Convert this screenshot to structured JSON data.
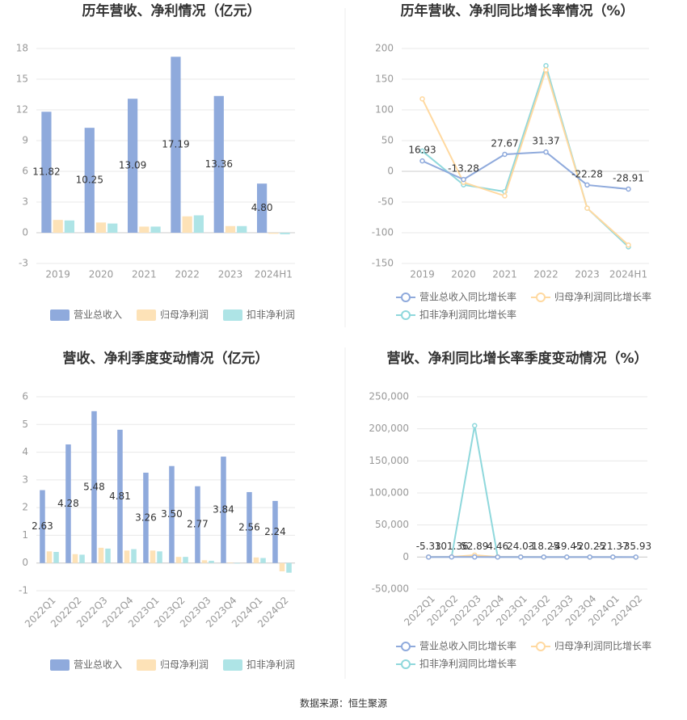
{
  "chart_data": [
    {
      "type": "bar",
      "title": "历年营收、净利情况（亿元）",
      "categories": [
        "2019",
        "2020",
        "2021",
        "2022",
        "2023",
        "2024H1"
      ],
      "series": [
        {
          "name": "营业总收入",
          "color": "#8faadc",
          "values": [
            11.82,
            10.25,
            13.09,
            17.19,
            13.36,
            4.8
          ],
          "value_labels": [
            "11.82",
            "10.25",
            "13.09",
            "17.19",
            "13.36",
            "4.80"
          ]
        },
        {
          "name": "归母净利润",
          "color": "#fde2b7",
          "values": [
            1.25,
            1.0,
            0.6,
            1.6,
            0.65,
            -0.1
          ]
        },
        {
          "name": "扣非净利润",
          "color": "#aee4e6",
          "values": [
            1.2,
            0.9,
            0.6,
            1.7,
            0.65,
            -0.15
          ]
        }
      ],
      "ylim": [
        -3,
        18
      ],
      "yticks": [
        -3,
        0,
        3,
        6,
        9,
        12,
        15,
        18
      ],
      "grid": true
    },
    {
      "type": "line",
      "title": "历年营收、净利同比增长率情况（%）",
      "categories": [
        "2019",
        "2020",
        "2021",
        "2022",
        "2023",
        "2024H1"
      ],
      "series": [
        {
          "name": "营业总收入同比增长率",
          "color": "#8faadc",
          "values": [
            16.93,
            -13.28,
            27.67,
            31.37,
            -22.28,
            -28.91
          ]
        },
        {
          "name": "归母净利润同比增长率",
          "color": "#ffd9a0",
          "values": [
            118,
            -18,
            -40,
            165,
            -60,
            -120
          ]
        },
        {
          "name": "扣非净利润同比增长率",
          "color": "#8fd8dc",
          "values": [
            33,
            -22,
            -33,
            172,
            -60,
            -123
          ]
        }
      ],
      "labeled_series": 0,
      "ylim": [
        -150,
        200
      ],
      "yticks": [
        -150,
        -100,
        -50,
        0,
        50,
        100,
        150,
        200
      ],
      "grid": true
    },
    {
      "type": "bar",
      "title": "营收、净利季度变动情况（亿元）",
      "categories": [
        "2022Q1",
        "2022Q2",
        "2022Q3",
        "2022Q4",
        "2023Q1",
        "2023Q2",
        "2023Q3",
        "2023Q4",
        "2024Q1",
        "2024Q2"
      ],
      "series": [
        {
          "name": "营业总收入",
          "color": "#8faadc",
          "values": [
            2.63,
            4.28,
            5.48,
            4.81,
            3.26,
            3.5,
            2.77,
            3.84,
            2.56,
            2.24
          ],
          "value_labels": [
            "2.63",
            "4.28",
            "5.48",
            "4.81",
            "3.26",
            "3.50",
            "2.77",
            "3.84",
            "2.56",
            "2.24"
          ]
        },
        {
          "name": "归母净利润",
          "color": "#fde2b7",
          "values": [
            0.42,
            0.32,
            0.55,
            0.45,
            0.45,
            0.22,
            0.1,
            0.02,
            0.2,
            -0.3
          ]
        },
        {
          "name": "扣非净利润",
          "color": "#aee4e6",
          "values": [
            0.4,
            0.3,
            0.52,
            0.5,
            0.42,
            0.22,
            0.08,
            -0.02,
            0.18,
            -0.35
          ]
        }
      ],
      "ylim": [
        -1,
        6
      ],
      "yticks": [
        -1,
        0,
        1,
        2,
        3,
        4,
        5,
        6
      ],
      "grid": true,
      "rotate_labels": true
    },
    {
      "type": "line",
      "title": "营收、净利同比增长率季度变动情况（%）",
      "categories": [
        "2022Q1",
        "2022Q2",
        "2022Q3",
        "2022Q4",
        "2023Q1",
        "2023Q2",
        "2023Q3",
        "2023Q4",
        "2024Q1",
        "2024Q2"
      ],
      "series": [
        {
          "name": "营业总收入同比增长率",
          "color": "#8faadc",
          "values": [
            -5.33,
            101.36,
            52.89,
            4.46,
            24.03,
            -18.25,
            -49.45,
            -20.25,
            -21.37,
            -35.93
          ]
        },
        {
          "name": "归母净利润同比增长率",
          "color": "#ffd9a0",
          "values": [
            50,
            300,
            3000,
            200,
            100,
            -50,
            -80,
            -90,
            -60,
            -150
          ]
        },
        {
          "name": "扣非净利润同比增长率",
          "color": "#8fd8dc",
          "values": [
            40,
            250,
            205000,
            300,
            100,
            -50,
            -80,
            -100,
            -60,
            -160
          ]
        }
      ],
      "labeled_series": 0,
      "ylim": [
        -50000,
        250000
      ],
      "yticks": [
        {
          "value": -50000,
          "label": "-50,000"
        },
        0,
        {
          "value": 50000,
          "label": "50,000"
        },
        {
          "value": 100000,
          "label": "100,000"
        },
        {
          "value": 150000,
          "label": "150,000"
        },
        {
          "value": 200000,
          "label": "200,000"
        },
        {
          "value": 250000,
          "label": "250,000"
        }
      ],
      "grid": true,
      "rotate_labels": true
    }
  ],
  "source": "数据来源：恒生聚源"
}
